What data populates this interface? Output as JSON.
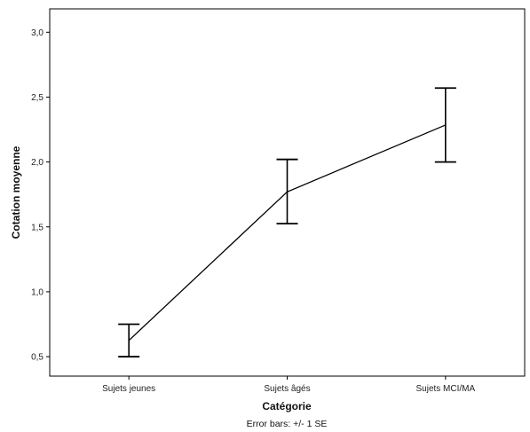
{
  "chart_data": {
    "type": "line",
    "categories": [
      "Sujets jeunes",
      "Sujets âgés",
      "Sujets MCI/MA"
    ],
    "series": [
      {
        "values": [
          0.625,
          1.77,
          2.285
        ],
        "error_low": [
          0.5,
          1.525,
          2.0
        ],
        "error_high": [
          0.75,
          2.02,
          2.57
        ]
      }
    ],
    "xlabel": "Catégorie",
    "ylabel": "Cotation moyenne",
    "ylim": [
      0.35,
      3.18
    ],
    "yticks": [
      0.5,
      1.0,
      1.5,
      2.0,
      2.5,
      3.0
    ],
    "ytick_labels": [
      "0,5",
      "1,0",
      "1,5",
      "2,0",
      "2,5",
      "3,0"
    ],
    "note": "Error bars: +/- 1 SE",
    "grid": false,
    "line_color": "#000000"
  }
}
